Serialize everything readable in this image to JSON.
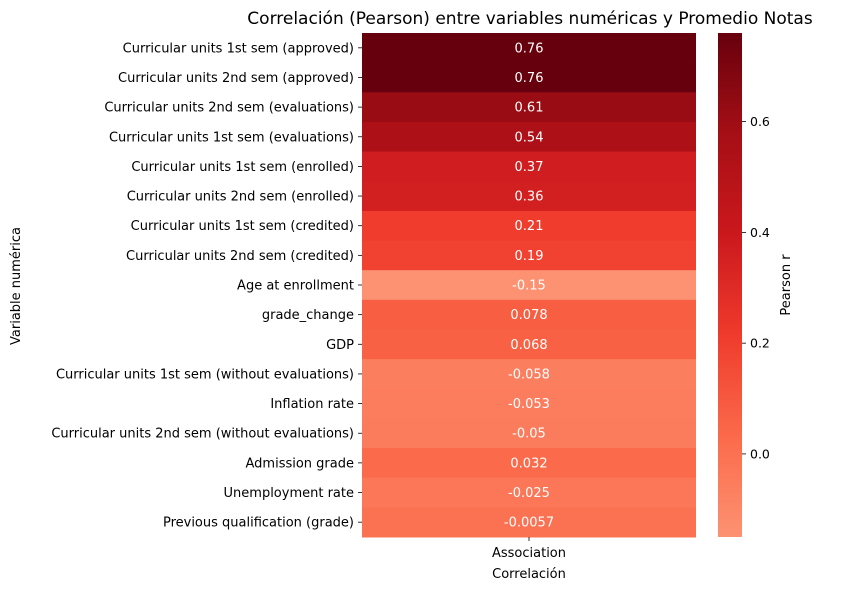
{
  "chart_data": {
    "type": "heatmap",
    "title": "Correlación (Pearson) entre variables numéricas y Promedio Notas",
    "xlabel": "Correlación",
    "ylabel": "Variable numérica",
    "column_label": "Association",
    "colorbar_label": "Pearson r",
    "colormap": "Reds",
    "vmin": -0.15,
    "vmax": 0.76,
    "colorbar_ticks": [
      {
        "value": 0.0,
        "label": "0.0"
      },
      {
        "value": 0.2,
        "label": "0.2"
      },
      {
        "value": 0.4,
        "label": "0.4"
      },
      {
        "value": 0.6,
        "label": "0.6"
      }
    ],
    "rows": [
      {
        "label": "Curricular units 1st sem (approved)",
        "value": 0.76,
        "text": "0.76"
      },
      {
        "label": "Curricular units 2nd sem (approved)",
        "value": 0.76,
        "text": "0.76"
      },
      {
        "label": "Curricular units 2nd sem (evaluations)",
        "value": 0.61,
        "text": "0.61"
      },
      {
        "label": "Curricular units 1st sem (evaluations)",
        "value": 0.54,
        "text": "0.54"
      },
      {
        "label": "Curricular units 1st sem (enrolled)",
        "value": 0.37,
        "text": "0.37"
      },
      {
        "label": "Curricular units 2nd sem (enrolled)",
        "value": 0.36,
        "text": "0.36"
      },
      {
        "label": "Curricular units 1st sem (credited)",
        "value": 0.21,
        "text": "0.21"
      },
      {
        "label": "Curricular units 2nd sem (credited)",
        "value": 0.19,
        "text": "0.19"
      },
      {
        "label": "Age at enrollment",
        "value": -0.15,
        "text": "-0.15"
      },
      {
        "label": "grade_change",
        "value": 0.078,
        "text": "0.078"
      },
      {
        "label": "GDP",
        "value": 0.068,
        "text": "0.068"
      },
      {
        "label": "Curricular units 1st sem (without evaluations)",
        "value": -0.058,
        "text": "-0.058"
      },
      {
        "label": "Inflation rate",
        "value": -0.053,
        "text": "-0.053"
      },
      {
        "label": "Curricular units 2nd sem (without evaluations)",
        "value": -0.05,
        "text": "-0.05"
      },
      {
        "label": "Admission grade",
        "value": 0.032,
        "text": "0.032"
      },
      {
        "label": "Unemployment rate",
        "value": -0.025,
        "text": "-0.025"
      },
      {
        "label": "Previous qualification (grade)",
        "value": -0.0057,
        "text": "-0.0057"
      }
    ]
  }
}
